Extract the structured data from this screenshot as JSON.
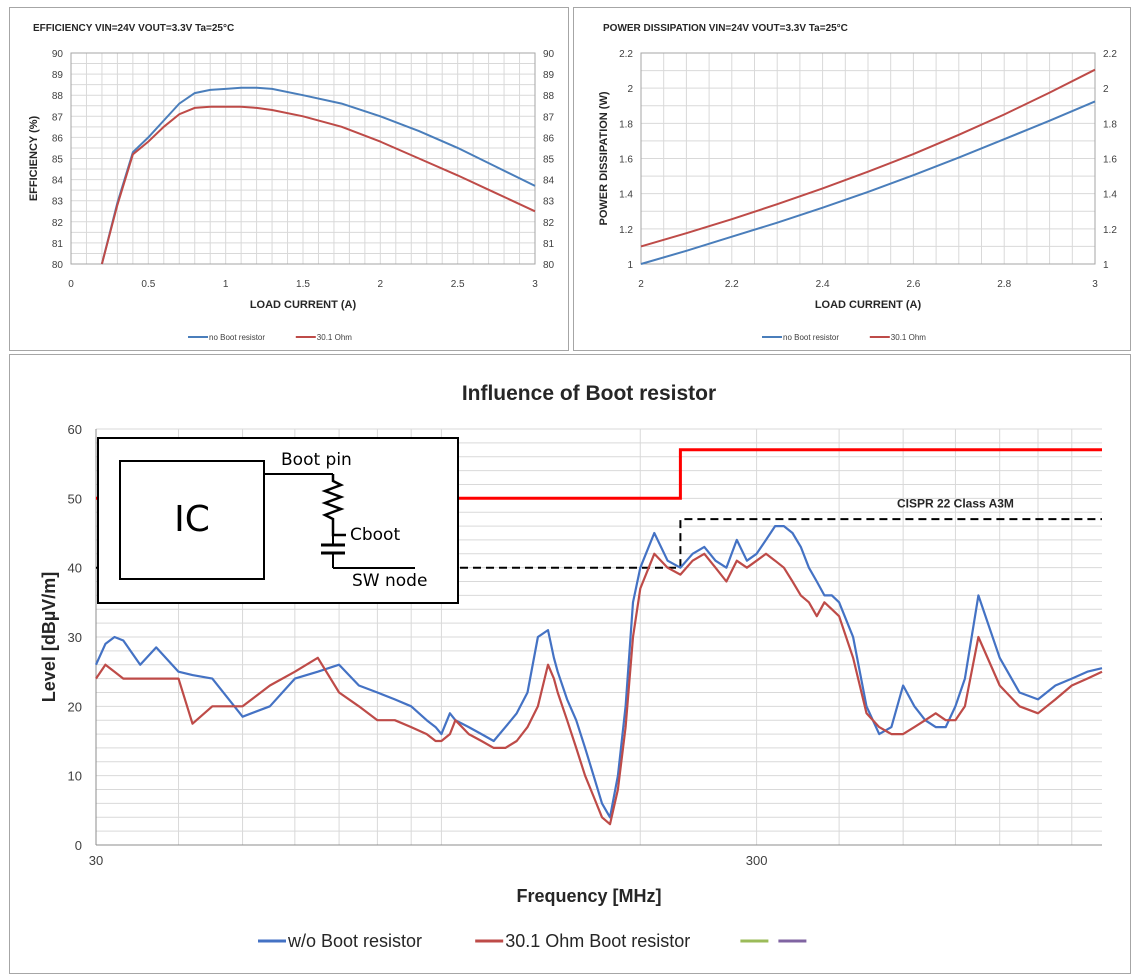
{
  "chart_data": [
    {
      "type": "line",
      "title": "EFFICIENCY VIN=24V VOUT=3.3V Ta=25°C",
      "xlabel": "LOAD CURRENT (A)",
      "ylabel": "EFFICIENCY (%)",
      "xlim": [
        0,
        3
      ],
      "ylim": [
        80,
        90
      ],
      "xticks": [
        "0",
        "0.5",
        "1",
        "1.5",
        "2",
        "2.5",
        "3"
      ],
      "yticks": [
        "80",
        "81",
        "82",
        "83",
        "84",
        "85",
        "86",
        "87",
        "88",
        "89",
        "90"
      ],
      "grid": true,
      "legend_position": "bottom",
      "series": [
        {
          "name": "no Boot resistor",
          "color": "#4a7ebb",
          "x": [
            0.2,
            0.3,
            0.4,
            0.5,
            0.6,
            0.7,
            0.8,
            0.9,
            1.0,
            1.1,
            1.2,
            1.3,
            1.5,
            1.75,
            2.0,
            2.25,
            2.5,
            2.75,
            3.0
          ],
          "y": [
            80.0,
            82.9,
            85.3,
            86.0,
            86.8,
            87.6,
            88.1,
            88.25,
            88.3,
            88.35,
            88.35,
            88.3,
            88.0,
            87.6,
            87.0,
            86.3,
            85.5,
            84.6,
            83.7
          ]
        },
        {
          "name": "30.1 Ohm",
          "color": "#be4b48",
          "x": [
            0.2,
            0.3,
            0.4,
            0.5,
            0.6,
            0.7,
            0.8,
            0.9,
            1.0,
            1.1,
            1.2,
            1.3,
            1.5,
            1.75,
            2.0,
            2.25,
            2.5,
            2.75,
            3.0
          ],
          "y": [
            80.0,
            82.8,
            85.2,
            85.8,
            86.5,
            87.1,
            87.4,
            87.45,
            87.45,
            87.45,
            87.4,
            87.3,
            87.0,
            86.5,
            85.8,
            85.0,
            84.2,
            83.35,
            82.5
          ]
        }
      ]
    },
    {
      "type": "line",
      "title": "POWER DISSIPATION VIN=24V VOUT=3.3V Ta=25°C",
      "xlabel": "LOAD CURRENT (A)",
      "ylabel": "POWER DISSIPATION (W)",
      "xlim": [
        2,
        3
      ],
      "ylim": [
        1,
        2.2
      ],
      "xticks": [
        "2",
        "2.2",
        "2.4",
        "2.6",
        "2.8",
        "3"
      ],
      "yticks": [
        "1",
        "1.2",
        "1.4",
        "1.6",
        "1.8",
        "2",
        "2.2"
      ],
      "grid": true,
      "legend_position": "bottom",
      "series": [
        {
          "name": "no Boot resistor",
          "color": "#4a7ebb",
          "x": [
            2.0,
            2.1,
            2.2,
            2.3,
            2.4,
            2.5,
            2.6,
            2.7,
            2.8,
            2.9,
            3.0
          ],
          "y": [
            1.0,
            1.075,
            1.155,
            1.235,
            1.32,
            1.41,
            1.505,
            1.605,
            1.71,
            1.815,
            1.925
          ]
        },
        {
          "name": "30.1 Ohm",
          "color": "#be4b48",
          "x": [
            2.0,
            2.1,
            2.2,
            2.3,
            2.4,
            2.5,
            2.6,
            2.7,
            2.8,
            2.9,
            3.0
          ],
          "y": [
            1.1,
            1.175,
            1.255,
            1.34,
            1.43,
            1.525,
            1.625,
            1.735,
            1.85,
            1.975,
            2.105
          ]
        }
      ]
    },
    {
      "type": "line",
      "title": "Influence of Boot resistor",
      "xlabel": "Frequency [MHz]",
      "ylabel": "Level [dBµV/m]",
      "xscale": "log",
      "xlim": [
        30,
        1000
      ],
      "ylim": [
        0,
        60
      ],
      "xticks": [
        "30",
        "300"
      ],
      "yticks": [
        "0",
        "10",
        "20",
        "30",
        "40",
        "50",
        "60"
      ],
      "grid": true,
      "legend_position": "bottom",
      "annotations": [
        "CISPR 22 Class A3M"
      ],
      "limit_lines": [
        {
          "color": "#ff0000",
          "style": "solid",
          "x": [
            30,
            230,
            230,
            1000
          ],
          "y": [
            50,
            50,
            57,
            57
          ]
        },
        {
          "color": "#000000",
          "style": "dashed",
          "x": [
            30,
            230,
            230,
            1000
          ],
          "y": [
            40,
            40,
            47,
            47
          ]
        }
      ],
      "series": [
        {
          "name": "w/o Boot resistor",
          "color": "#4472c4",
          "x": [
            30,
            31,
            32,
            33,
            35,
            37,
            40,
            42,
            45,
            50,
            55,
            60,
            65,
            70,
            75,
            80,
            85,
            90,
            95,
            98,
            100,
            103,
            105,
            110,
            115,
            120,
            125,
            130,
            135,
            140,
            145,
            148,
            150,
            155,
            160,
            165,
            170,
            175,
            180,
            185,
            190,
            195,
            200,
            210,
            220,
            230,
            240,
            250,
            260,
            270,
            280,
            290,
            300,
            310,
            320,
            330,
            340,
            350,
            360,
            370,
            380,
            390,
            400,
            420,
            440,
            460,
            480,
            500,
            520,
            540,
            560,
            580,
            600,
            620,
            650,
            700,
            750,
            800,
            850,
            900,
            950,
            1000
          ],
          "y": [
            26,
            29,
            30,
            29.5,
            26,
            28.5,
            25,
            24.5,
            24,
            18.5,
            20,
            24,
            25,
            26,
            23,
            22,
            21,
            20,
            18,
            17,
            16,
            19,
            18,
            17,
            16,
            15,
            17,
            19,
            22,
            30,
            31,
            27,
            25,
            21,
            18,
            14,
            10,
            6,
            4,
            10,
            20,
            35,
            40,
            45,
            41,
            40,
            42,
            43,
            41,
            40,
            44,
            41,
            42,
            44,
            46,
            46,
            45,
            43,
            40,
            38,
            36,
            36,
            35,
            30,
            20,
            16,
            17,
            23,
            20,
            18,
            17,
            17,
            20,
            24,
            36,
            27,
            22,
            21,
            23,
            24,
            25,
            25.5
          ]
        },
        {
          "name": "30.1 Ohm Boot resistor",
          "color": "#be4b48",
          "x": [
            30,
            31,
            32,
            33,
            35,
            37,
            40,
            42,
            45,
            50,
            55,
            60,
            65,
            70,
            75,
            80,
            85,
            90,
            95,
            98,
            100,
            103,
            105,
            110,
            115,
            120,
            125,
            130,
            135,
            140,
            145,
            148,
            150,
            155,
            160,
            165,
            170,
            175,
            180,
            185,
            190,
            195,
            200,
            210,
            220,
            230,
            240,
            250,
            260,
            270,
            280,
            290,
            300,
            310,
            320,
            330,
            340,
            350,
            360,
            370,
            380,
            390,
            400,
            420,
            440,
            460,
            480,
            500,
            520,
            540,
            560,
            580,
            600,
            620,
            650,
            700,
            750,
            800,
            850,
            900,
            950,
            1000
          ],
          "y": [
            24,
            26,
            25,
            24,
            24,
            24,
            24,
            17.5,
            20,
            20,
            23,
            25,
            27,
            22,
            20,
            18,
            18,
            17,
            16,
            15,
            15,
            16,
            18,
            16,
            15,
            14,
            14,
            15,
            17,
            20,
            26,
            24,
            22,
            18,
            14,
            10,
            7,
            4,
            3,
            8,
            17,
            30,
            37,
            42,
            40,
            39,
            41,
            42,
            40,
            38,
            41,
            40,
            41,
            42,
            41,
            40,
            38,
            36,
            35,
            33,
            35,
            34,
            33,
            27,
            19,
            17,
            16,
            16,
            17,
            18,
            19,
            18,
            18,
            20,
            30,
            23,
            20,
            19,
            21,
            23,
            24,
            25
          ]
        },
        {
          "name": "",
          "color": "#9bbb59",
          "x": [],
          "y": []
        },
        {
          "name": "",
          "color": "#8064a2",
          "x": [],
          "y": []
        }
      ],
      "inset_schematic": {
        "ic_label": "IC",
        "labels": [
          "Boot pin",
          "Cboot",
          "SW node"
        ]
      }
    }
  ]
}
